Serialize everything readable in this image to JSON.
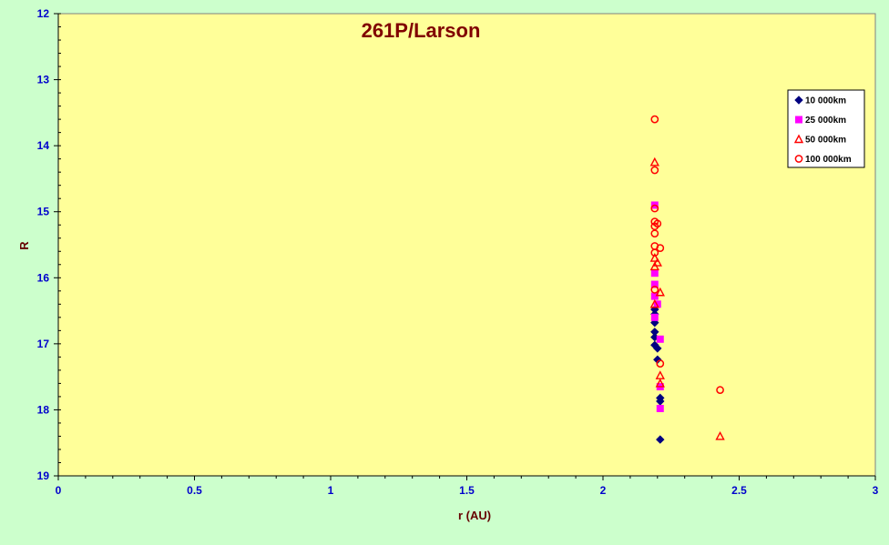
{
  "chart_data": {
    "type": "scatter",
    "title": "261P/Larson",
    "xlabel": "r (AU)",
    "ylabel": "R",
    "xlim": [
      0,
      3
    ],
    "ylim": [
      12,
      19
    ],
    "y_inverted": true,
    "xticks": [
      "0",
      "0.5",
      "1",
      "1.5",
      "2",
      "2.5",
      "3"
    ],
    "yticks": [
      "12",
      "13",
      "14",
      "15",
      "16",
      "17",
      "18",
      "19"
    ],
    "grid": false,
    "legend_position": "top-right",
    "colors": {
      "plot_background": "#ffff99",
      "page_background": "#ccffcc"
    },
    "series": [
      {
        "name": "10 000km",
        "marker": "diamond",
        "color": "#000080",
        "points": [
          [
            2.19,
            16.48
          ],
          [
            2.19,
            16.55
          ],
          [
            2.19,
            16.68
          ],
          [
            2.19,
            16.82
          ],
          [
            2.19,
            16.9
          ],
          [
            2.19,
            17.02
          ],
          [
            2.2,
            17.07
          ],
          [
            2.2,
            17.24
          ],
          [
            2.21,
            17.82
          ],
          [
            2.21,
            17.87
          ],
          [
            2.21,
            18.45
          ]
        ]
      },
      {
        "name": "25 000km",
        "marker": "square",
        "color": "#ff00ff",
        "points": [
          [
            2.19,
            14.9
          ],
          [
            2.19,
            15.93
          ],
          [
            2.19,
            16.1
          ],
          [
            2.19,
            16.28
          ],
          [
            2.2,
            16.4
          ],
          [
            2.19,
            16.6
          ],
          [
            2.21,
            16.93
          ],
          [
            2.21,
            17.65
          ],
          [
            2.21,
            17.98
          ]
        ]
      },
      {
        "name": "50 000km",
        "marker": "triangle",
        "color": "#ff0000",
        "points": [
          [
            2.19,
            14.25
          ],
          [
            2.19,
            15.7
          ],
          [
            2.2,
            15.77
          ],
          [
            2.19,
            15.83
          ],
          [
            2.21,
            16.22
          ],
          [
            2.19,
            16.4
          ],
          [
            2.21,
            17.48
          ],
          [
            2.21,
            17.6
          ],
          [
            2.43,
            18.4
          ]
        ]
      },
      {
        "name": "100 000km",
        "marker": "circle",
        "color": "#ff0000",
        "points": [
          [
            2.19,
            13.6
          ],
          [
            2.19,
            14.37
          ],
          [
            2.19,
            14.95
          ],
          [
            2.19,
            15.15
          ],
          [
            2.2,
            15.18
          ],
          [
            2.19,
            15.22
          ],
          [
            2.19,
            15.33
          ],
          [
            2.19,
            15.52
          ],
          [
            2.21,
            15.55
          ],
          [
            2.19,
            15.62
          ],
          [
            2.19,
            16.18
          ],
          [
            2.21,
            17.3
          ],
          [
            2.43,
            17.7
          ]
        ]
      }
    ]
  }
}
